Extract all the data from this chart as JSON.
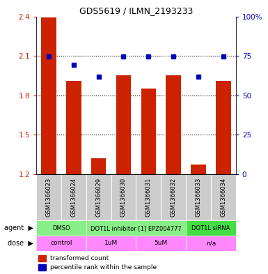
{
  "title": "GDS5619 / ILMN_2193233",
  "samples": [
    "GSM1366023",
    "GSM1366024",
    "GSM1366029",
    "GSM1366030",
    "GSM1366031",
    "GSM1366032",
    "GSM1366033",
    "GSM1366034"
  ],
  "bar_values": [
    2.39,
    1.91,
    1.32,
    1.95,
    1.85,
    1.95,
    1.27,
    1.91
  ],
  "percentile_values": [
    2.095,
    2.03,
    1.94,
    2.095,
    2.095,
    2.095,
    1.94,
    2.095
  ],
  "ymin": 1.2,
  "ymax": 2.4,
  "yticks_left": [
    1.2,
    1.5,
    1.8,
    2.1,
    2.4
  ],
  "yticks_right": [
    0,
    25,
    50,
    75,
    100
  ],
  "ytick_right_labels": [
    "0",
    "25",
    "50",
    "75",
    "100%"
  ],
  "bar_color": "#cc2200",
  "percentile_color": "#0000bb",
  "agent_rows": [
    {
      "label": "DMSO",
      "start": 0,
      "end": 2,
      "color": "#88ee88"
    },
    {
      "label": "DOT1L inhibitor [1] EPZ004777",
      "start": 2,
      "end": 6,
      "color": "#88ee88"
    },
    {
      "label": "DOT1L siRNA",
      "start": 6,
      "end": 8,
      "color": "#44dd44"
    }
  ],
  "dose_rows": [
    {
      "label": "control",
      "start": 0,
      "end": 2,
      "color": "#ff88ff"
    },
    {
      "label": "1uM",
      "start": 2,
      "end": 4,
      "color": "#ff88ff"
    },
    {
      "label": "5uM",
      "start": 4,
      "end": 6,
      "color": "#ff88ff"
    },
    {
      "label": "n/a",
      "start": 6,
      "end": 8,
      "color": "#ff88ff"
    }
  ],
  "legend_red_label": "transformed count",
  "legend_blue_label": "percentile rank within the sample",
  "bar_width": 0.6,
  "sample_bg": "#cccccc",
  "label_fontsize": 7,
  "tick_fontsize": 7.5,
  "title_fontsize": 9
}
